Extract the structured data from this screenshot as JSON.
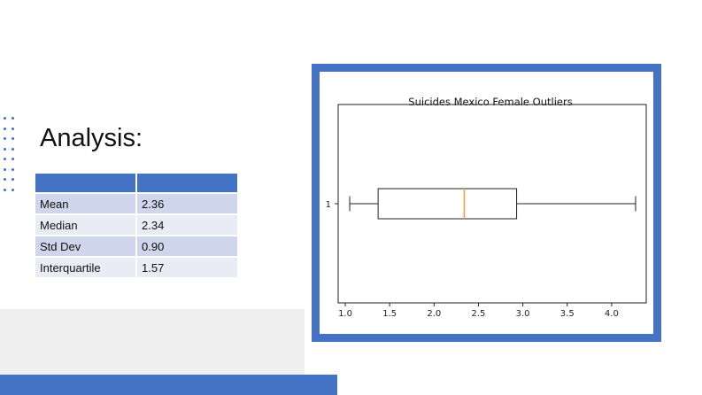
{
  "slide": {
    "title": "Analysis:",
    "accent_color": "#4472c4"
  },
  "stats_table": {
    "headers": [
      "",
      ""
    ],
    "rows": [
      {
        "label": "Mean",
        "value": "2.36"
      },
      {
        "label": "Median",
        "value": "2.34"
      },
      {
        "label": "Std Dev",
        "value": "0.90"
      },
      {
        "label": "Interquartile",
        "value": "1.57"
      }
    ]
  },
  "chart_data": {
    "type": "boxplot",
    "title": "Suicides Mexico Female Outliers",
    "orientation": "horizontal",
    "categories": [
      "1"
    ],
    "x_ticks": [
      "1.0",
      "1.5",
      "2.0",
      "2.5",
      "3.0",
      "3.5",
      "4.0"
    ],
    "xlim": [
      0.92,
      4.39
    ],
    "boxes": [
      {
        "label": "1",
        "whisker_low": 1.05,
        "q1": 1.37,
        "median": 2.34,
        "q3": 2.93,
        "whisker_high": 4.27
      }
    ],
    "box_color": "#222222",
    "median_color": "#f5a03c",
    "grid": false
  }
}
